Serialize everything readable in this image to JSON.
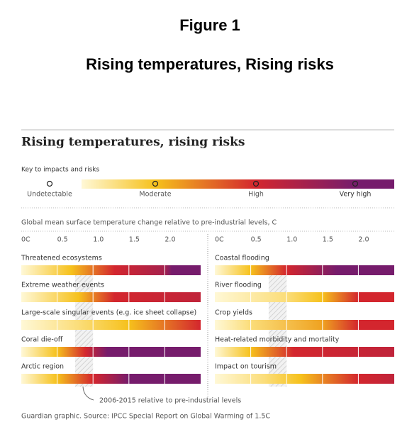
{
  "header": {
    "title": "Figure 1",
    "subtitle": "Rising temperatures, Rising risks"
  },
  "chart_data": {
    "type": "embers",
    "title": "Rising temperatures, rising risks",
    "key": {
      "title": "Key to impacts and risks",
      "labels": [
        "Undetectable",
        "Moderate",
        "High",
        "Very high"
      ],
      "colors": [
        "#fff8d6",
        "#f6c11c",
        "#d3262e",
        "#761c6c"
      ]
    },
    "x_label": "Global mean surface temperature change relative to pre-industrial levels, C",
    "xlim": [
      0,
      2.5
    ],
    "xticks": [
      {
        "value": 0,
        "label": "0C"
      },
      0.5,
      {
        "value": 1,
        "label": "1.0"
      },
      1.5,
      {
        "value": 2,
        "label": "2.0"
      }
    ],
    "observed_range": [
      0.75,
      1.0
    ],
    "observed_label": "2006-2015 relative to pre-industrial levels",
    "panels": [
      {
        "rows": [
          {
            "name": "Threatened ecosystems",
            "stops": [
              [
                0,
                0
              ],
              [
                0.7,
                1
              ],
              [
                1.3,
                2
              ],
              [
                2.0,
                2.5
              ],
              [
                2.1,
                3
              ],
              [
                2.5,
                3
              ]
            ]
          },
          {
            "name": "Extreme weather events",
            "stops": [
              [
                0,
                0
              ],
              [
                0.8,
                1
              ],
              [
                1.3,
                2
              ],
              [
                2.5,
                2.2
              ]
            ]
          },
          {
            "name": "Large-scale singular events (e.g. ice sheet collapse)",
            "stops": [
              [
                0,
                0
              ],
              [
                0.8,
                0.5
              ],
              [
                1.5,
                1
              ],
              [
                2.0,
                1.5
              ],
              [
                2.5,
                2
              ]
            ]
          },
          {
            "name": "Coral die-off",
            "stops": [
              [
                0,
                0
              ],
              [
                0.5,
                1
              ],
              [
                0.9,
                2
              ],
              [
                1.2,
                3
              ],
              [
                2.5,
                3
              ]
            ]
          },
          {
            "name": "Arctic region",
            "stops": [
              [
                0,
                0
              ],
              [
                0.5,
                1
              ],
              [
                1.0,
                2
              ],
              [
                1.5,
                3
              ],
              [
                2.5,
                3
              ]
            ]
          }
        ]
      },
      {
        "rows": [
          {
            "name": "Coastal flooding",
            "stops": [
              [
                0,
                0
              ],
              [
                0.5,
                1
              ],
              [
                1.0,
                2
              ],
              [
                1.7,
                3
              ],
              [
                2.5,
                3
              ]
            ]
          },
          {
            "name": "River flooding",
            "stops": [
              [
                0,
                0
              ],
              [
                1.0,
                0.5
              ],
              [
                1.5,
                1
              ],
              [
                2.0,
                2
              ],
              [
                2.5,
                2
              ]
            ]
          },
          {
            "name": "Crop yields",
            "stops": [
              [
                0,
                0
              ],
              [
                0.5,
                0.5
              ],
              [
                1.5,
                1.2
              ],
              [
                2.0,
                2
              ],
              [
                2.5,
                2
              ]
            ]
          },
          {
            "name": "Heat-related morbidity and mortality",
            "stops": [
              [
                0,
                0
              ],
              [
                0.5,
                1
              ],
              [
                1.1,
                2
              ],
              [
                2.5,
                2.2
              ]
            ]
          },
          {
            "name": "Impact on tourism",
            "stops": [
              [
                0,
                0
              ],
              [
                0.7,
                0.5
              ],
              [
                1.2,
                1
              ],
              [
                2.0,
                2
              ],
              [
                2.5,
                2.2
              ]
            ]
          }
        ]
      }
    ],
    "source": "Guardian graphic. Source: IPCC Special Report on Global Warming of 1.5C"
  }
}
